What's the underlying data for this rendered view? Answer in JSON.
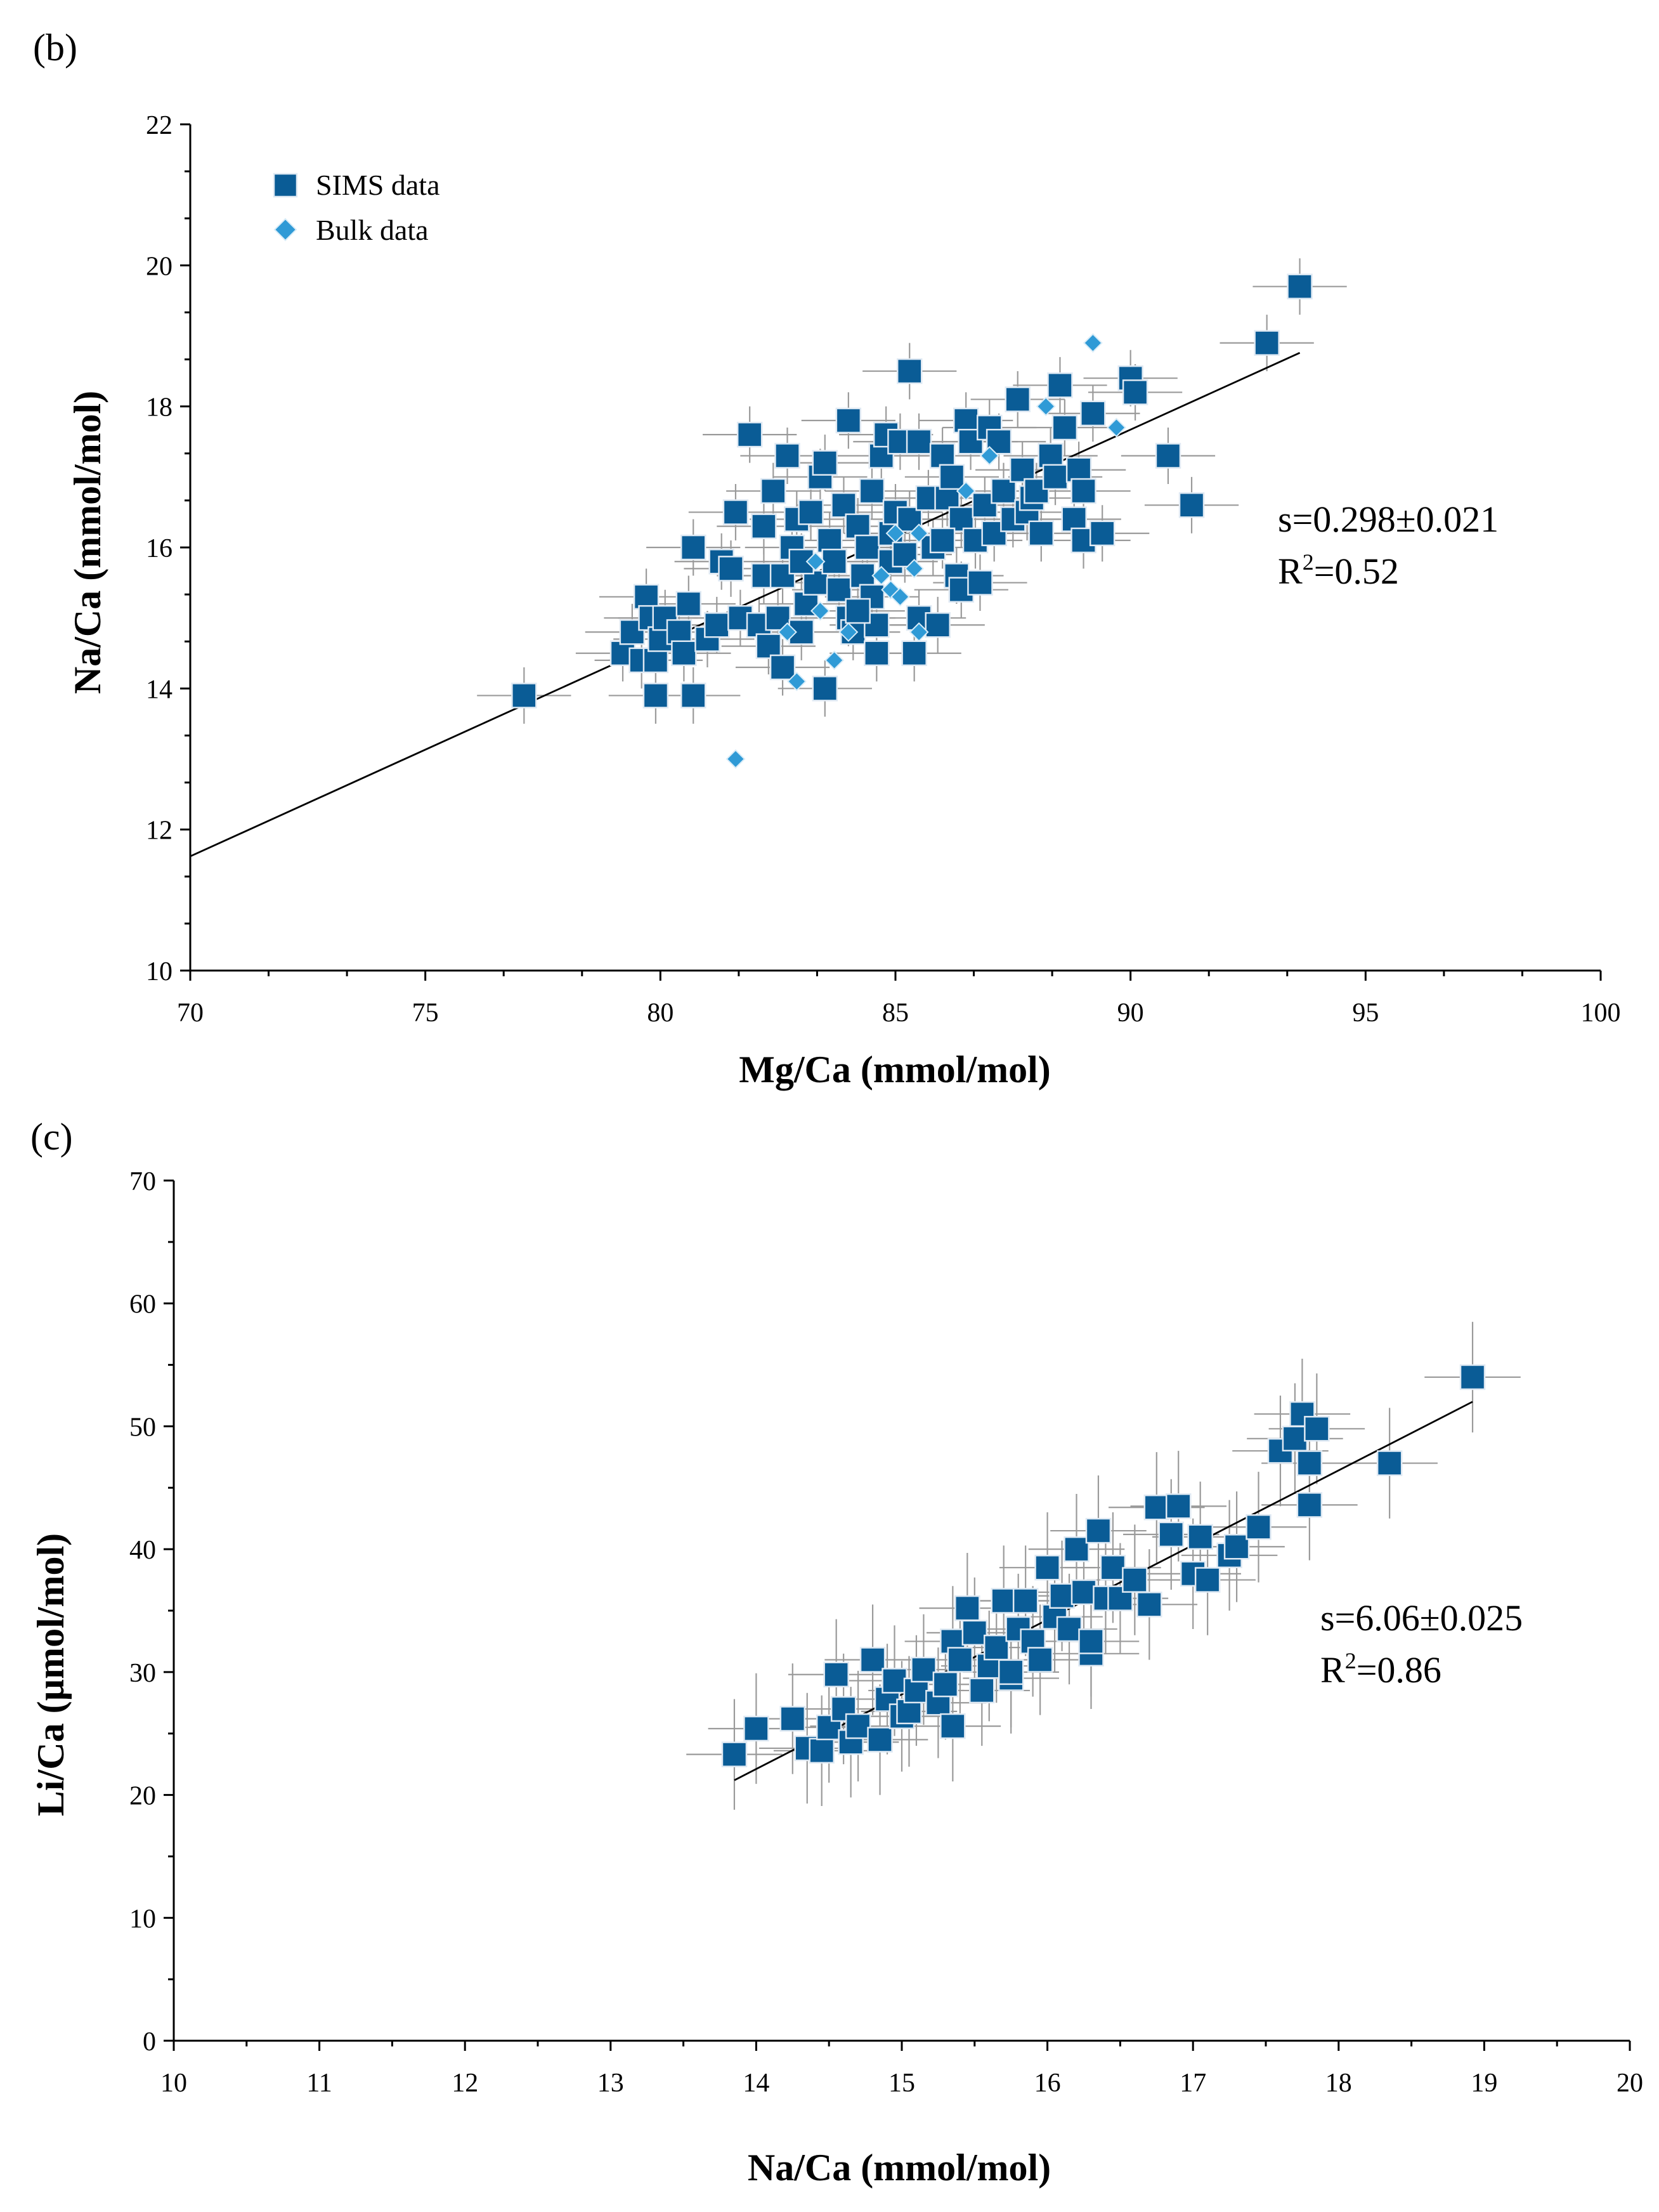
{
  "chart_data": [
    {
      "type": "scatter",
      "panel_label": "(b)",
      "xlabel": "Mg/Ca (mmol/mol)",
      "ylabel": "Na/Ca (mmol/mol)",
      "xlim": [
        70,
        100
      ],
      "ylim": [
        10,
        22
      ],
      "x_ticks": [
        70,
        75,
        80,
        85,
        90,
        95,
        100
      ],
      "y_ticks": [
        10,
        12,
        14,
        16,
        18,
        20,
        22
      ],
      "legend": {
        "position": "top-left",
        "entries": [
          "SIMS data",
          "Bulk data"
        ]
      },
      "annotation": {
        "slope": "s=0.298±0.021",
        "r2_prefix": "R",
        "r2_sup": "2",
        "r2_value": "=0.52"
      },
      "trendline": {
        "x": [
          70,
          93.6
        ],
        "y": [
          11.62,
          18.76
        ]
      },
      "series": [
        {
          "name": "SIMS data",
          "x_err": 1.0,
          "y_err": 0.4,
          "points": [
            [
              77.1,
              13.9
            ],
            [
              79.2,
              14.5
            ],
            [
              79.4,
              14.8
            ],
            [
              79.6,
              14.4
            ],
            [
              79.7,
              15.3
            ],
            [
              79.8,
              15.0
            ],
            [
              79.9,
              14.4
            ],
            [
              80.0,
              14.7
            ],
            [
              80.1,
              15.0
            ],
            [
              79.9,
              13.9
            ],
            [
              80.4,
              14.8
            ],
            [
              80.6,
              15.2
            ],
            [
              80.5,
              14.5
            ],
            [
              80.7,
              13.9
            ],
            [
              80.7,
              16.0
            ],
            [
              81.0,
              14.7
            ],
            [
              81.2,
              14.9
            ],
            [
              81.3,
              15.8
            ],
            [
              81.5,
              15.7
            ],
            [
              81.6,
              16.5
            ],
            [
              81.7,
              15.0
            ],
            [
              81.9,
              17.6
            ],
            [
              82.1,
              14.9
            ],
            [
              82.2,
              15.6
            ],
            [
              82.2,
              16.3
            ],
            [
              82.4,
              16.8
            ],
            [
              82.3,
              14.6
            ],
            [
              82.5,
              15.0
            ],
            [
              82.6,
              14.3
            ],
            [
              82.6,
              15.6
            ],
            [
              82.7,
              17.3
            ],
            [
              82.8,
              16.0
            ],
            [
              82.9,
              16.4
            ],
            [
              83.0,
              14.8
            ],
            [
              83.1,
              15.2
            ],
            [
              83.2,
              16.5
            ],
            [
              83.3,
              15.5
            ],
            [
              83.4,
              17.0
            ],
            [
              83.5,
              17.2
            ],
            [
              83.5,
              14.0
            ],
            [
              83.6,
              16.1
            ],
            [
              83.7,
              15.8
            ],
            [
              83.8,
              15.4
            ],
            [
              83.9,
              16.6
            ],
            [
              84.0,
              17.8
            ],
            [
              84.0,
              15.0
            ],
            [
              84.1,
              14.8
            ],
            [
              84.2,
              16.3
            ],
            [
              84.3,
              15.6
            ],
            [
              84.4,
              16.0
            ],
            [
              84.5,
              16.8
            ],
            [
              84.5,
              15.3
            ],
            [
              84.6,
              14.9
            ],
            [
              84.6,
              14.5
            ],
            [
              84.7,
              17.3
            ],
            [
              84.8,
              17.6
            ],
            [
              84.9,
              16.2
            ],
            [
              84.9,
              15.8
            ],
            [
              85.0,
              16.5
            ],
            [
              85.1,
              17.5
            ],
            [
              85.2,
              15.9
            ],
            [
              85.3,
              18.5
            ],
            [
              85.3,
              16.4
            ],
            [
              85.4,
              14.5
            ],
            [
              85.5,
              15.0
            ],
            [
              85.5,
              17.5
            ],
            [
              85.7,
              16.7
            ],
            [
              85.8,
              16.0
            ],
            [
              85.9,
              14.9
            ],
            [
              86.0,
              17.3
            ],
            [
              86.1,
              16.7
            ],
            [
              86.2,
              17.0
            ],
            [
              86.3,
              15.6
            ],
            [
              86.4,
              15.4
            ],
            [
              86.4,
              16.4
            ],
            [
              86.5,
              17.8
            ],
            [
              86.6,
              17.5
            ],
            [
              86.7,
              16.1
            ],
            [
              86.8,
              15.5
            ],
            [
              86.9,
              16.6
            ],
            [
              87.0,
              17.7
            ],
            [
              87.1,
              16.2
            ],
            [
              87.2,
              17.5
            ],
            [
              87.3,
              16.8
            ],
            [
              87.5,
              16.4
            ],
            [
              87.6,
              18.1
            ],
            [
              87.7,
              17.1
            ],
            [
              87.8,
              16.5
            ],
            [
              87.9,
              16.7
            ],
            [
              88.0,
              16.8
            ],
            [
              88.1,
              16.2
            ],
            [
              88.3,
              17.3
            ],
            [
              88.4,
              17.0
            ],
            [
              88.5,
              18.3
            ],
            [
              88.6,
              17.7
            ],
            [
              88.8,
              16.4
            ],
            [
              88.9,
              17.1
            ],
            [
              89.0,
              16.1
            ],
            [
              89.0,
              16.8
            ],
            [
              89.2,
              17.9
            ],
            [
              89.4,
              16.2
            ],
            [
              90.0,
              18.4
            ],
            [
              90.1,
              18.2
            ],
            [
              90.8,
              17.3
            ],
            [
              91.3,
              16.6
            ],
            [
              92.9,
              18.9
            ],
            [
              93.6,
              19.7
            ],
            [
              83.0,
              15.8
            ],
            [
              84.2,
              15.1
            ],
            [
              86.0,
              16.1
            ]
          ]
        },
        {
          "name": "Bulk data",
          "points": [
            [
              81.6,
              13.0
            ],
            [
              82.9,
              14.1
            ],
            [
              83.7,
              14.4
            ],
            [
              82.7,
              14.8
            ],
            [
              83.4,
              15.1
            ],
            [
              84.0,
              14.8
            ],
            [
              83.3,
              15.8
            ],
            [
              84.7,
              15.6
            ],
            [
              84.9,
              15.4
            ],
            [
              85.1,
              15.3
            ],
            [
              85.5,
              14.8
            ],
            [
              85.4,
              15.7
            ],
            [
              85.0,
              16.2
            ],
            [
              85.5,
              16.2
            ],
            [
              86.5,
              16.8
            ],
            [
              87.0,
              17.3
            ],
            [
              88.2,
              18.0
            ],
            [
              89.2,
              18.9
            ],
            [
              89.7,
              17.7
            ]
          ]
        }
      ]
    },
    {
      "type": "scatter",
      "panel_label": "(c)",
      "xlabel": "Na/Ca (mmol/mol)",
      "ylabel": "Li/Ca (µmol/mol)",
      "xlim": [
        10,
        20
      ],
      "ylim": [
        0,
        70
      ],
      "x_ticks": [
        10,
        11,
        12,
        13,
        14,
        15,
        16,
        17,
        18,
        19,
        20
      ],
      "y_ticks": [
        0,
        10,
        20,
        30,
        40,
        50,
        60,
        70
      ],
      "annotation": {
        "slope": "s=6.06±0.025",
        "r2_prefix": "R",
        "r2_sup": "2",
        "r2_value": "=0.86"
      },
      "trendline": {
        "x": [
          13.85,
          18.92
        ],
        "y": [
          21.2,
          52.0
        ]
      },
      "series": [
        {
          "name": "SIMS data",
          "x_err": 0.33,
          "y_err": 4.5,
          "points": [
            [
              13.85,
              23.3
            ],
            [
              14.0,
              25.4
            ],
            [
              14.25,
              26.2
            ],
            [
              14.35,
              23.8
            ],
            [
              14.45,
              23.6
            ],
            [
              14.5,
              25.5
            ],
            [
              14.55,
              29.8
            ],
            [
              14.6,
              27.0
            ],
            [
              14.65,
              24.3
            ],
            [
              14.7,
              25.6
            ],
            [
              14.8,
              31.0
            ],
            [
              14.85,
              24.5
            ],
            [
              14.9,
              27.8
            ],
            [
              14.95,
              29.3
            ],
            [
              15.0,
              26.4
            ],
            [
              15.05,
              26.8
            ],
            [
              15.1,
              28.5
            ],
            [
              15.15,
              30.2
            ],
            [
              15.25,
              27.5
            ],
            [
              15.3,
              29.0
            ],
            [
              15.35,
              25.6
            ],
            [
              15.35,
              32.5
            ],
            [
              15.4,
              31.0
            ],
            [
              15.45,
              35.2
            ],
            [
              15.5,
              33.2
            ],
            [
              15.55,
              28.5
            ],
            [
              15.6,
              30.5
            ],
            [
              15.65,
              32.0
            ],
            [
              15.7,
              35.8
            ],
            [
              15.75,
              29.5
            ],
            [
              15.8,
              33.5
            ],
            [
              15.85,
              35.8
            ],
            [
              15.9,
              32.5
            ],
            [
              15.95,
              31.0
            ],
            [
              16.0,
              38.5
            ],
            [
              16.05,
              34.5
            ],
            [
              16.1,
              36.2
            ],
            [
              16.15,
              33.5
            ],
            [
              16.2,
              40.0
            ],
            [
              16.25,
              36.5
            ],
            [
              16.3,
              31.5
            ],
            [
              16.35,
              41.5
            ],
            [
              16.4,
              36.0
            ],
            [
              16.45,
              38.5
            ],
            [
              16.5,
              36.0
            ],
            [
              16.6,
              37.5
            ],
            [
              16.7,
              35.5
            ],
            [
              16.75,
              43.4
            ],
            [
              16.85,
              41.2
            ],
            [
              16.9,
              43.5
            ],
            [
              17.0,
              38.0
            ],
            [
              17.05,
              41.0
            ],
            [
              17.1,
              37.5
            ],
            [
              17.25,
              39.5
            ],
            [
              17.3,
              40.2
            ],
            [
              17.45,
              41.8
            ],
            [
              17.6,
              48.0
            ],
            [
              17.7,
              49.0
            ],
            [
              17.75,
              51.0
            ],
            [
              17.8,
              43.6
            ],
            [
              17.8,
              47.0
            ],
            [
              17.85,
              49.8
            ],
            [
              18.35,
              47.0
            ],
            [
              18.92,
              54.0
            ],
            [
              15.75,
              30.0
            ],
            [
              16.3,
              32.5
            ]
          ]
        }
      ]
    }
  ]
}
